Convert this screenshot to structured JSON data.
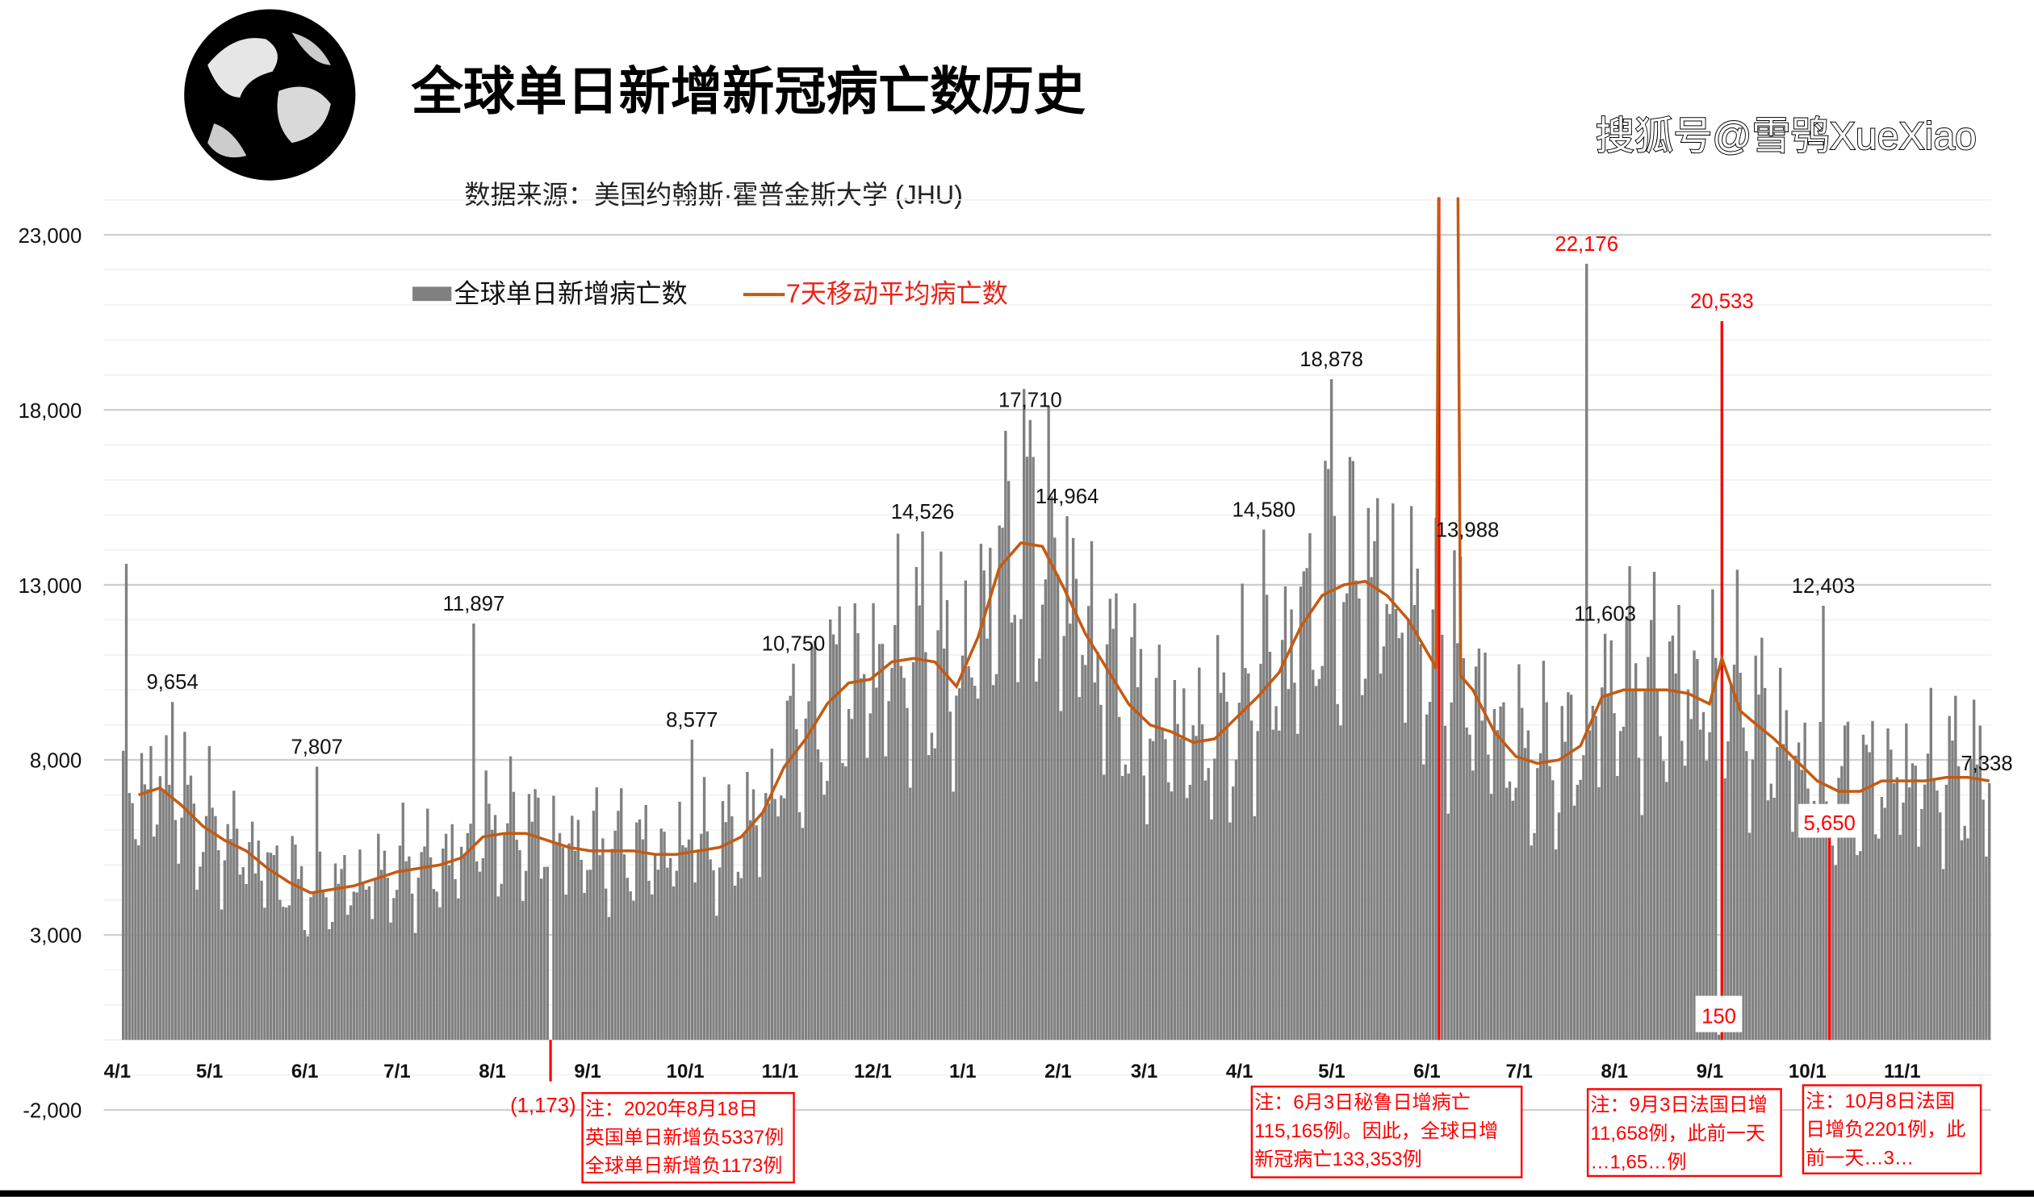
{
  "chart_data": {
    "type": "bar",
    "title": "全球单日新增新冠病亡数历史",
    "subtitle": "数据来源：美国约翰斯·霍普金斯大学 (JHU)",
    "ylim": [
      -2000,
      24000
    ],
    "yticks": [
      23000,
      18000,
      13000,
      8000,
      3000,
      -2000
    ],
    "ytick_labels": [
      "23,000",
      "18,000",
      "13,000",
      "8,000",
      "3,000",
      "-2,000"
    ],
    "xlim": [
      "2020-04-01",
      "2021-11-29"
    ],
    "xticks": [
      "2020-04-01",
      "2020-05-01",
      "2020-06-01",
      "2020-07-01",
      "2020-08-01",
      "2020-09-01",
      "2020-10-01",
      "2020-11-01",
      "2020-12-01",
      "2021-01-01",
      "2021-02-01",
      "2021-03-01",
      "2021-04-01",
      "2021-05-01",
      "2021-06-01",
      "2021-07-01",
      "2021-08-01",
      "2021-09-01",
      "2021-10-01",
      "2021-11-01"
    ],
    "xtick_labels": [
      "4/1",
      "5/1",
      "6/1",
      "7/1",
      "8/1",
      "9/1",
      "10/1",
      "11/1",
      "12/1",
      "1/1",
      "2/1",
      "3/1",
      "4/1",
      "5/1",
      "6/1",
      "7/1",
      "8/1",
      "9/1",
      "10/1",
      "11/1"
    ],
    "grid": true,
    "legend_placement": "top-left",
    "colors": {
      "bars": "#808080",
      "moving_average": "#c55a11",
      "annotation": "#ff0000"
    },
    "legend": {
      "bars": "全球单日新增病亡数",
      "line": "7天移动平均病亡数"
    },
    "series": [
      {
        "name": "7天移动平均病亡数",
        "type": "line",
        "points": [
          [
            "2020-04-06",
            7000
          ],
          [
            "2020-04-13",
            7200
          ],
          [
            "2020-04-20",
            6700
          ],
          [
            "2020-04-27",
            6100
          ],
          [
            "2020-05-04",
            5700
          ],
          [
            "2020-05-11",
            5400
          ],
          [
            "2020-05-18",
            4900
          ],
          [
            "2020-05-25",
            4500
          ],
          [
            "2020-06-01",
            4200
          ],
          [
            "2020-06-08",
            4300
          ],
          [
            "2020-06-15",
            4400
          ],
          [
            "2020-06-22",
            4600
          ],
          [
            "2020-06-29",
            4800
          ],
          [
            "2020-07-06",
            4900
          ],
          [
            "2020-07-13",
            5000
          ],
          [
            "2020-07-20",
            5200
          ],
          [
            "2020-07-27",
            5800
          ],
          [
            "2020-08-03",
            5900
          ],
          [
            "2020-08-10",
            5900
          ],
          [
            "2020-08-17",
            5700
          ],
          [
            "2020-08-24",
            5500
          ],
          [
            "2020-08-31",
            5400
          ],
          [
            "2020-09-07",
            5400
          ],
          [
            "2020-09-14",
            5400
          ],
          [
            "2020-09-21",
            5300
          ],
          [
            "2020-09-28",
            5300
          ],
          [
            "2020-10-05",
            5400
          ],
          [
            "2020-10-12",
            5500
          ],
          [
            "2020-10-19",
            5800
          ],
          [
            "2020-10-26",
            6500
          ],
          [
            "2020-11-02",
            7800
          ],
          [
            "2020-11-09",
            8600
          ],
          [
            "2020-11-16",
            9600
          ],
          [
            "2020-11-23",
            10200
          ],
          [
            "2020-11-30",
            10300
          ],
          [
            "2020-12-07",
            10800
          ],
          [
            "2020-12-14",
            10900
          ],
          [
            "2020-12-21",
            10800
          ],
          [
            "2020-12-28",
            10100
          ],
          [
            "2021-01-04",
            11500
          ],
          [
            "2021-01-11",
            13500
          ],
          [
            "2021-01-18",
            14200
          ],
          [
            "2021-01-25",
            14100
          ],
          [
            "2021-02-01",
            12900
          ],
          [
            "2021-02-08",
            11600
          ],
          [
            "2021-02-15",
            10600
          ],
          [
            "2021-02-22",
            9600
          ],
          [
            "2021-03-01",
            9000
          ],
          [
            "2021-03-08",
            8800
          ],
          [
            "2021-03-15",
            8500
          ],
          [
            "2021-03-22",
            8600
          ],
          [
            "2021-03-29",
            9200
          ],
          [
            "2021-04-05",
            9800
          ],
          [
            "2021-04-12",
            10500
          ],
          [
            "2021-04-19",
            11800
          ],
          [
            "2021-04-26",
            12700
          ],
          [
            "2021-05-03",
            13000
          ],
          [
            "2021-05-10",
            13100
          ],
          [
            "2021-05-17",
            12700
          ],
          [
            "2021-05-24",
            12000
          ],
          [
            "2021-06-01",
            10800
          ],
          [
            "2021-06-02",
            10600
          ],
          [
            "2021-06-03",
            26500
          ],
          [
            "2021-06-09",
            26500
          ],
          [
            "2021-06-10",
            10400
          ],
          [
            "2021-06-14",
            10000
          ],
          [
            "2021-06-21",
            8800
          ],
          [
            "2021-06-28",
            8100
          ],
          [
            "2021-07-05",
            7900
          ],
          [
            "2021-07-12",
            8000
          ],
          [
            "2021-07-19",
            8400
          ],
          [
            "2021-07-26",
            9800
          ],
          [
            "2021-08-02",
            10000
          ],
          [
            "2021-08-09",
            10000
          ],
          [
            "2021-08-16",
            10000
          ],
          [
            "2021-08-23",
            9900
          ],
          [
            "2021-08-30",
            9600
          ],
          [
            "2021-09-03",
            10900
          ],
          [
            "2021-09-09",
            9400
          ],
          [
            "2021-09-13",
            9100
          ],
          [
            "2021-09-20",
            8600
          ],
          [
            "2021-09-27",
            8000
          ],
          [
            "2021-10-04",
            7400
          ],
          [
            "2021-10-11",
            7100
          ],
          [
            "2021-10-18",
            7100
          ],
          [
            "2021-10-25",
            7400
          ],
          [
            "2021-11-01",
            7400
          ],
          [
            "2021-11-08",
            7400
          ],
          [
            "2021-11-15",
            7500
          ],
          [
            "2021-11-22",
            7500
          ],
          [
            "2021-11-29",
            7400
          ]
        ]
      },
      {
        "name": "全球单日新增病亡数",
        "type": "bar",
        "labeled_points": [
          {
            "date": "2020-04-02",
            "value": 13600,
            "label": ""
          },
          {
            "date": "2020-04-17",
            "value": 9654,
            "label": "9,654"
          },
          {
            "date": "2020-06-03",
            "value": 7807,
            "label": "7,807"
          },
          {
            "date": "2020-07-24",
            "value": 11897,
            "label": "11,897"
          },
          {
            "date": "2020-08-18",
            "value": -1173,
            "label": "(1,173)"
          },
          {
            "date": "2020-10-03",
            "value": 8577,
            "label": "8,577"
          },
          {
            "date": "2020-11-05",
            "value": 10750,
            "label": "10,750"
          },
          {
            "date": "2020-12-17",
            "value": 14526,
            "label": "14,526"
          },
          {
            "date": "2021-01-21",
            "value": 17710,
            "label": "17,710"
          },
          {
            "date": "2021-02-02",
            "value": 14964,
            "label": "14,964"
          },
          {
            "date": "2021-04-07",
            "value": 14580,
            "label": "14,580"
          },
          {
            "date": "2021-04-29",
            "value": 18878,
            "label": "18,878"
          },
          {
            "date": "2021-06-03",
            "value": 133353,
            "label": ""
          },
          {
            "date": "2021-06-08",
            "value": 13988,
            "label": "13,988"
          },
          {
            "date": "2021-07-21",
            "value": 22176,
            "label": "22,176"
          },
          {
            "date": "2021-07-27",
            "value": 11603,
            "label": "11,603"
          },
          {
            "date": "2021-09-02",
            "value": 150,
            "label": "150"
          },
          {
            "date": "2021-09-03",
            "value": 20533,
            "label": "20,533"
          },
          {
            "date": "2021-10-06",
            "value": 12403,
            "label": "12,403"
          },
          {
            "date": "2021-10-08",
            "value": 5650,
            "label": "5,650"
          },
          {
            "date": "2021-11-29",
            "value": 7338,
            "label": "7,338"
          }
        ]
      }
    ],
    "annotations": [
      {
        "lines": [
          "注：2020年8月18日",
          "英国单日新增负5337例",
          "全球单日新增负1173例"
        ]
      },
      {
        "lines": [
          "注：6月3日秘鲁日增病亡",
          "115,165例。因此，全球日增",
          "新冠病亡133,353例"
        ]
      },
      {
        "lines": [
          "注：9月3日法国日增",
          "11,658例，此前一天",
          "…1,65…例"
        ]
      },
      {
        "lines": [
          "注：10月8日法国",
          "日增负2201例，此",
          "前一天…3…"
        ]
      }
    ]
  },
  "watermark": "搜狐号@雪鸮XueXiao"
}
